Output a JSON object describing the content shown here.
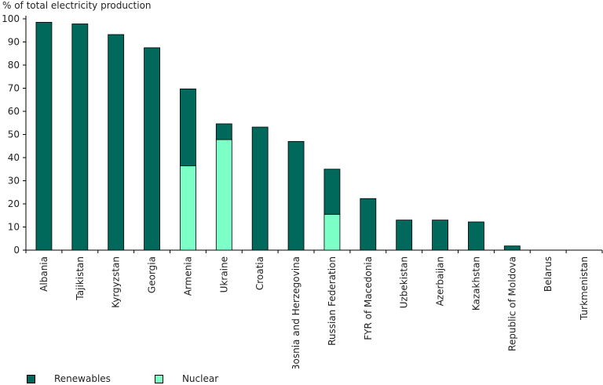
{
  "chart_data": {
    "type": "bar",
    "stacked": true,
    "ylabel": "% of total electricity production",
    "ylim": [
      0,
      100
    ],
    "yticks": [
      0,
      10,
      20,
      30,
      40,
      50,
      60,
      70,
      80,
      90,
      100
    ],
    "categories": [
      "Albania",
      "Tajikistan",
      "Kyrgyzstan",
      "Georgia",
      "Armenia",
      "Ukraine",
      "Croatia",
      "Bosnia and Herzegovina",
      "Russian Federation",
      "FYR of Macedonia",
      "Uzbekistan",
      "Azerbaijan",
      "Kazakhstan",
      "Republic of Moldova",
      "Belarus",
      "Turkmenistan"
    ],
    "series": [
      {
        "name": "Nuclear",
        "color": "#7dffc8",
        "values": [
          0,
          0,
          0,
          0,
          36.5,
          47.8,
          0,
          0,
          15.5,
          0,
          0,
          0,
          0,
          0,
          0,
          0
        ]
      },
      {
        "name": "Renewables",
        "color": "#00695c",
        "values": [
          98.5,
          97.8,
          93.2,
          87.5,
          33.2,
          6.8,
          53.2,
          47.0,
          19.5,
          22.3,
          13.0,
          13.0,
          12.2,
          1.8,
          0,
          0
        ]
      }
    ],
    "legend": {
      "position": "bottom",
      "items": [
        "Renewables",
        "Nuclear"
      ]
    },
    "grid": false
  }
}
